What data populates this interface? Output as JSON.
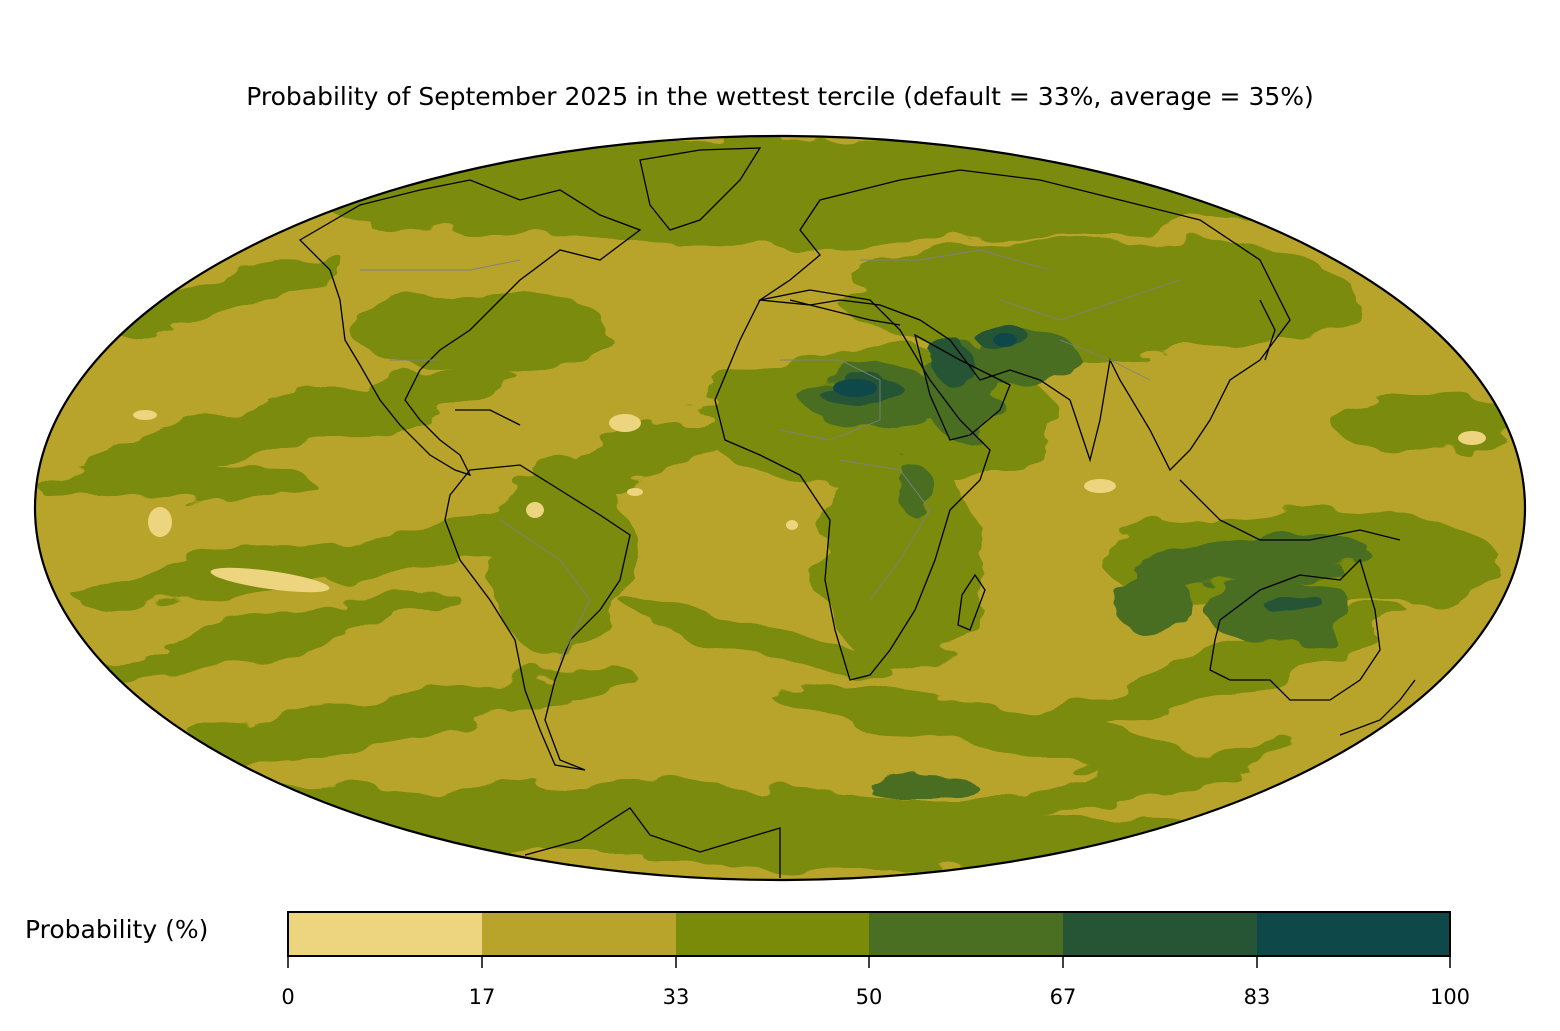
{
  "title": "Probability of September 2025 in the wettest tercile (default = 33%, average = 35%)",
  "colorbar": {
    "label": "Probability (%)",
    "ticks": [
      "0",
      "17",
      "33",
      "50",
      "67",
      "83",
      "100"
    ],
    "bins": [
      {
        "from": 0,
        "to": 17,
        "color": "#edd47e"
      },
      {
        "from": 17,
        "to": 33,
        "color": "#b8a42a"
      },
      {
        "from": 33,
        "to": 50,
        "color": "#7a8b0a"
      },
      {
        "from": 50,
        "to": 67,
        "color": "#4a6e22"
      },
      {
        "from": 67,
        "to": 83,
        "color": "#255535"
      },
      {
        "from": 83,
        "to": 100,
        "color": "#0e4848"
      }
    ]
  },
  "map": {
    "projection": "Mollweide",
    "background_color": "#b8a42a",
    "coastline_color": "#000000",
    "border_color": "#808080"
  }
}
